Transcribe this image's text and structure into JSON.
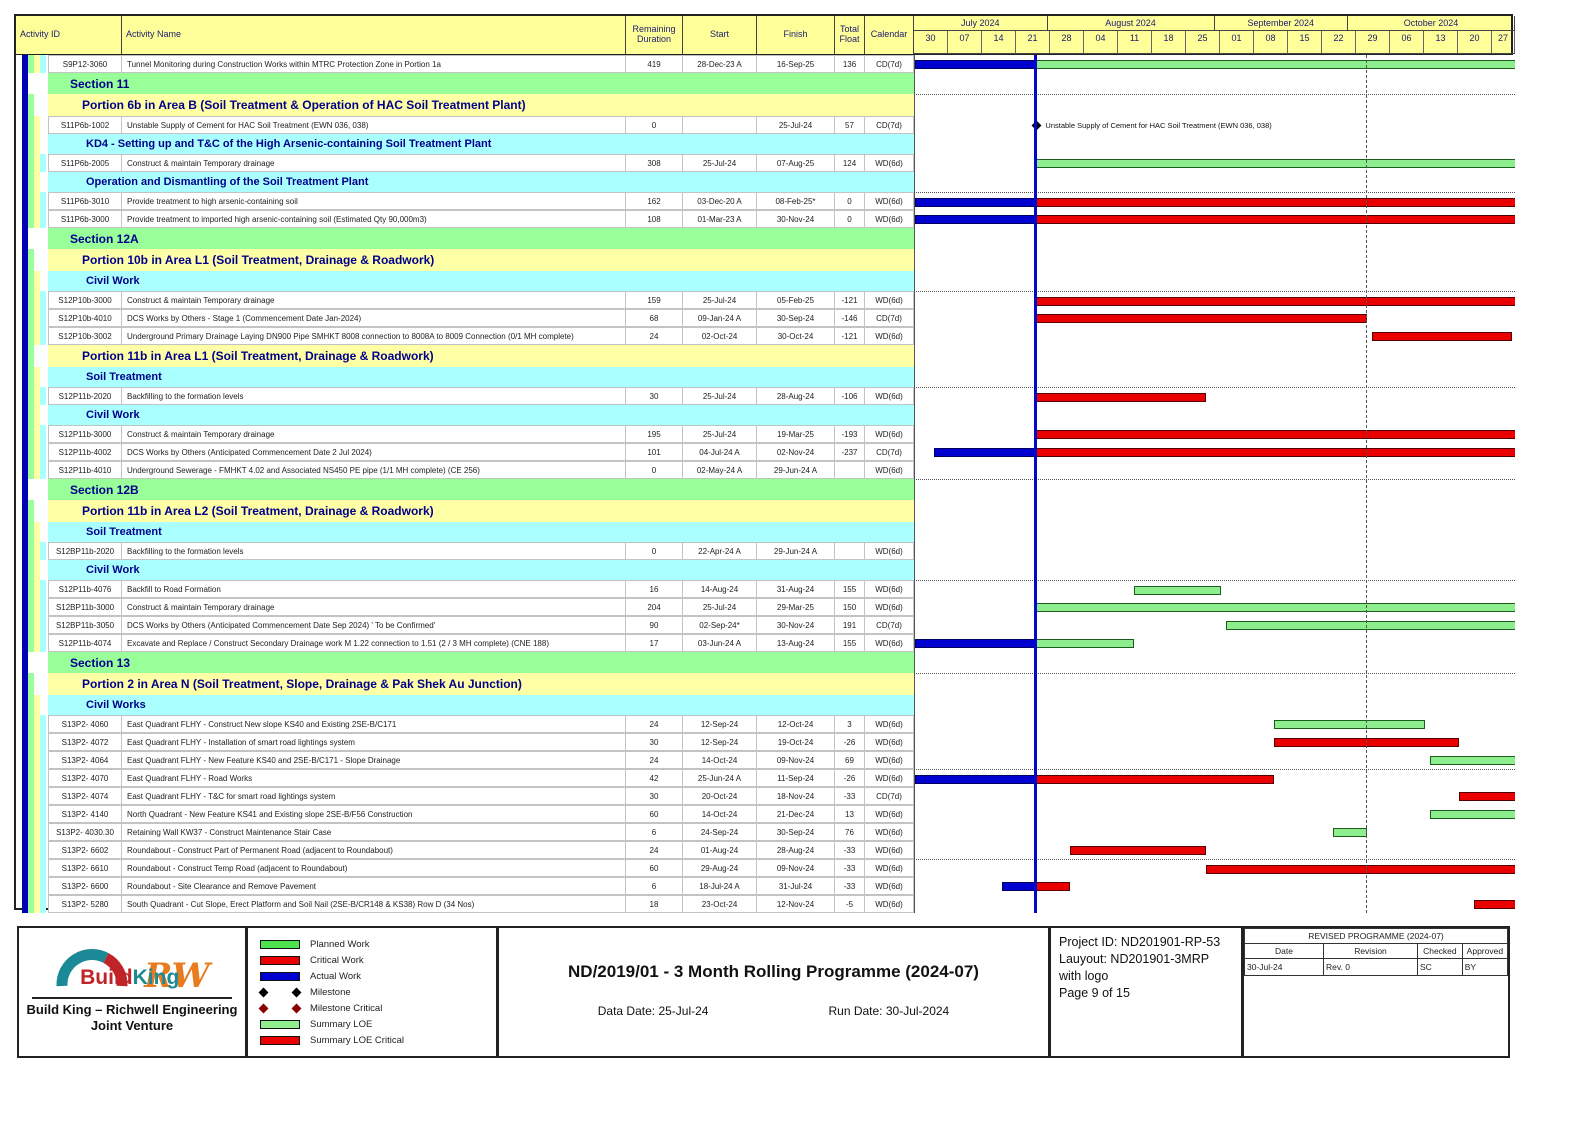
{
  "header_columns": {
    "activity_id": "Activity ID",
    "activity_name": "Activity Name",
    "remaining_duration": "Remaining Duration",
    "start": "Start",
    "finish": "Finish",
    "total_float": "Total Float",
    "calendar": "Calendar"
  },
  "chart_data": {
    "type": "table",
    "title": "ND/2019/01 - 3 Month Rolling Programme (2024-07)",
    "timeline": {
      "origin_date": "2024-06-30",
      "data_date": "25-Jul-24",
      "data_date_day": 25,
      "period_end_day": 93,
      "months": [
        {
          "label": "July 2024",
          "weeks": [
            "30",
            "07",
            "14",
            "21"
          ]
        },
        {
          "label": "August 2024",
          "weeks": [
            "28",
            "04",
            "11",
            "18",
            "25"
          ]
        },
        {
          "label": "September 2024",
          "weeks": [
            "01",
            "08",
            "15",
            "22"
          ]
        },
        {
          "label": "October 2024",
          "weeks": [
            "29",
            "06",
            "13",
            "20",
            "27"
          ]
        }
      ]
    },
    "bar_types": {
      "a": "Actual Work (blue)",
      "c": "Critical Work (red)",
      "p": "Planned Work (green)"
    },
    "rows": [
      {
        "t": "activity",
        "d": 4,
        "id": "S9P12-3060",
        "nm": "Tunnel Monitoring during Construction Works within MTRC Protection Zone in Portion 1a",
        "rd": "419",
        "st": "28-Dec-23 A",
        "fn": "16-Sep-25",
        "fl": "136",
        "cal": "CD(7d)",
        "bars": [
          {
            "c": "a",
            "s": 0,
            "e": 25
          },
          {
            "c": "p",
            "s": 25,
            "e": 999
          }
        ]
      },
      {
        "t": "section",
        "label": "Section 11"
      },
      {
        "t": "portion",
        "label": "Portion 6b in Area B   (Soil Treatment & Operation of HAC Soil Treatment Plant)",
        "sight": true
      },
      {
        "t": "activity",
        "d": 3,
        "id": "S11P6b-1002",
        "nm": "Unstable Supply of Cement for HAC Soil Treatment (EWN 036, 038)",
        "rd": "0",
        "st": "",
        "fn": "25-Jul-24",
        "fl": "57",
        "cal": "CD(7d)",
        "bars": [],
        "ms": {
          "day": 25,
          "label": "Unstable Supply of Cement for HAC Soil Treatment (EWN 036, 038)"
        }
      },
      {
        "t": "group",
        "label": "KD4 - Setting up and T&C of the High Arsenic-containing Soil Treatment Plant"
      },
      {
        "t": "activity",
        "d": 4,
        "id": "S11P6b-2005",
        "nm": "Construct & maintain Temporary drainage",
        "rd": "308",
        "st": "25-Jul-24",
        "fn": "07-Aug-25",
        "fl": "124",
        "cal": "WD(6d)",
        "bars": [
          {
            "c": "p",
            "s": 25,
            "e": 999
          }
        ]
      },
      {
        "t": "group",
        "label": "Operation and Dismantling of the Soil Treatment Plant"
      },
      {
        "t": "activity",
        "d": 4,
        "id": "S11P6b-3010",
        "nm": "Provide treatment to high arsenic-containing soil",
        "rd": "162",
        "st": "03-Dec-20 A",
        "fn": "08-Feb-25*",
        "fl": "0",
        "cal": "WD(6d)",
        "bars": [
          {
            "c": "a",
            "s": 0,
            "e": 25
          },
          {
            "c": "c",
            "s": 25,
            "e": 999
          }
        ],
        "sight": true
      },
      {
        "t": "activity",
        "d": 4,
        "id": "S11P6b-3000",
        "nm": "Provide treatment to imported high arsenic-containing soil (Estimated Qty 90,000m3)",
        "rd": "108",
        "st": "01-Mar-23 A",
        "fn": "30-Nov-24",
        "fl": "0",
        "cal": "WD(6d)",
        "bars": [
          {
            "c": "a",
            "s": 0,
            "e": 25
          },
          {
            "c": "c",
            "s": 25,
            "e": 999
          }
        ]
      },
      {
        "t": "section",
        "label": "Section 12A"
      },
      {
        "t": "portion",
        "label": "Portion 10b in Area L1   (Soil Treatment, Drainage & Roadwork)"
      },
      {
        "t": "group",
        "label": "Civil Work"
      },
      {
        "t": "activity",
        "d": 4,
        "id": "S12P10b-3000",
        "nm": "Construct & maintain Temporary drainage",
        "rd": "159",
        "st": "25-Jul-24",
        "fn": "05-Feb-25",
        "fl": "-121",
        "cal": "WD(6d)",
        "bars": [
          {
            "c": "c",
            "s": 25,
            "e": 999
          }
        ],
        "sight": true
      },
      {
        "t": "activity",
        "d": 4,
        "id": "S12P10b-4010",
        "nm": "DCS Works by Others - Stage 1 (Commencement Date Jan-2024)",
        "rd": "68",
        "st": "09-Jan-24 A",
        "fn": "30-Sep-24",
        "fl": "-146",
        "cal": "CD(7d)",
        "bars": [
          {
            "c": "c",
            "s": 25,
            "e": 93
          }
        ]
      },
      {
        "t": "activity",
        "d": 4,
        "id": "S12P10b-3002",
        "nm": "Underground Primary Drainage Laying DN900 Pipe SMHKT 8008 connection to 8008A to 8009 Connection (0/1 MH complete)",
        "rd": "24",
        "st": "02-Oct-24",
        "fn": "30-Oct-24",
        "fl": "-121",
        "cal": "WD(6d)",
        "bars": [
          {
            "c": "c",
            "s": 94,
            "e": 123
          }
        ]
      },
      {
        "t": "portion",
        "label": "Portion 11b in Area L1   (Soil Treatment, Drainage & Roadwork)"
      },
      {
        "t": "group",
        "label": "Soil Treatment"
      },
      {
        "t": "activity",
        "d": 4,
        "id": "S12P11b-2020",
        "nm": "Backfilling to the formation levels",
        "rd": "30",
        "st": "25-Jul-24",
        "fn": "28-Aug-24",
        "fl": "-106",
        "cal": "WD(6d)",
        "bars": [
          {
            "c": "c",
            "s": 25,
            "e": 60
          }
        ],
        "sight": true
      },
      {
        "t": "group",
        "label": "Civil Work"
      },
      {
        "t": "activity",
        "d": 4,
        "id": "S12P11b-3000",
        "nm": "Construct & maintain Temporary drainage",
        "rd": "195",
        "st": "25-Jul-24",
        "fn": "19-Mar-25",
        "fl": "-193",
        "cal": "WD(6d)",
        "bars": [
          {
            "c": "c",
            "s": 25,
            "e": 999
          }
        ]
      },
      {
        "t": "activity",
        "d": 4,
        "id": "S12P11b-4002",
        "nm": "DCS Works by Others (Anticipated Commencement Date 2 Jul 2024)",
        "rd": "101",
        "st": "04-Jul-24 A",
        "fn": "02-Nov-24",
        "fl": "-237",
        "cal": "CD(7d)",
        "bars": [
          {
            "c": "a",
            "s": 4,
            "e": 25
          },
          {
            "c": "c",
            "s": 25,
            "e": 999
          }
        ]
      },
      {
        "t": "activity",
        "d": 4,
        "id": "S12P11b-4010",
        "nm": "Underground Sewerage - FMHKT 4.02 and Associated NS450 PE pipe (1/1 MH complete) (CE 256)",
        "rd": "0",
        "st": "02-May-24 A",
        "fn": "29-Jun-24 A",
        "fl": "",
        "cal": "WD(6d)",
        "bars": []
      },
      {
        "t": "section",
        "label": "Section 12B",
        "sight": true
      },
      {
        "t": "portion",
        "label": "Portion 11b in Area L2   (Soil Treatment, Drainage & Roadwork)"
      },
      {
        "t": "group",
        "label": "Soil Treatment"
      },
      {
        "t": "activity",
        "d": 4,
        "id": "S12BP11b-2020",
        "nm": "Backfilling to the formation levels",
        "rd": "0",
        "st": "22-Apr-24 A",
        "fn": "29-Jun-24 A",
        "fl": "",
        "cal": "WD(6d)",
        "bars": []
      },
      {
        "t": "group",
        "label": "Civil Work"
      },
      {
        "t": "activity",
        "d": 4,
        "id": "S12P11b-4076",
        "nm": "Backfill to Road Formation",
        "rd": "16",
        "st": "14-Aug-24",
        "fn": "31-Aug-24",
        "fl": "155",
        "cal": "WD(6d)",
        "bars": [
          {
            "c": "p",
            "s": 45,
            "e": 63
          }
        ],
        "sight": true
      },
      {
        "t": "activity",
        "d": 4,
        "id": "S12BP11b-3000",
        "nm": "Construct & maintain Temporary drainage",
        "rd": "204",
        "st": "25-Jul-24",
        "fn": "29-Mar-25",
        "fl": "150",
        "cal": "WD(6d)",
        "bars": [
          {
            "c": "p",
            "s": 25,
            "e": 999
          }
        ]
      },
      {
        "t": "activity",
        "d": 4,
        "id": "S12BP11b-3050",
        "nm": "DCS Works by Others (Anticipated Commencement Date Sep 2024) ' To be Confirmed'",
        "rd": "90",
        "st": "02-Sep-24*",
        "fn": "30-Nov-24",
        "fl": "191",
        "cal": "CD(7d)",
        "bars": [
          {
            "c": "p",
            "s": 64,
            "e": 999
          }
        ]
      },
      {
        "t": "activity",
        "d": 4,
        "id": "S12P11b-4074",
        "nm": "Excavate and Replace / Construct Secondary Drainage work M 1.22 connection to 1.51 (2 / 3 MH complete) (CNE 188)",
        "rd": "17",
        "st": "03-Jun-24 A",
        "fn": "13-Aug-24",
        "fl": "155",
        "cal": "WD(6d)",
        "bars": [
          {
            "c": "a",
            "s": 0,
            "e": 25
          },
          {
            "c": "p",
            "s": 25,
            "e": 45
          }
        ]
      },
      {
        "t": "section",
        "label": "Section 13"
      },
      {
        "t": "portion",
        "label": "Portion 2 in Area N   (Soil Treatment, Slope, Drainage & Pak Shek Au Junction)",
        "sight": true
      },
      {
        "t": "group",
        "label": "Civil Works"
      },
      {
        "t": "activity",
        "d": 4,
        "id": "S13P2- 4060",
        "nm": "East Quadrant FLHY - Construct New slope KS40 and Existing 2SE-B/C171",
        "rd": "24",
        "st": "12-Sep-24",
        "fn": "12-Oct-24",
        "fl": "3",
        "cal": "WD(6d)",
        "bars": [
          {
            "c": "p",
            "s": 74,
            "e": 105
          }
        ]
      },
      {
        "t": "activity",
        "d": 4,
        "id": "S13P2- 4072",
        "nm": "East Quadrant FLHY - Installation of smart road lightings system",
        "rd": "30",
        "st": "12-Sep-24",
        "fn": "19-Oct-24",
        "fl": "-26",
        "cal": "WD(6d)",
        "bars": [
          {
            "c": "c",
            "s": 74,
            "e": 112
          }
        ]
      },
      {
        "t": "activity",
        "d": 4,
        "id": "S13P2- 4064",
        "nm": "East Quadrant FLHY - New Feature KS40 and 2SE-B/C171 - Slope Drainage",
        "rd": "24",
        "st": "14-Oct-24",
        "fn": "09-Nov-24",
        "fl": "69",
        "cal": "WD(6d)",
        "bars": [
          {
            "c": "p",
            "s": 106,
            "e": 999
          }
        ]
      },
      {
        "t": "activity",
        "d": 4,
        "id": "S13P2- 4070",
        "nm": "East Quadrant FLHY - Road Works",
        "rd": "42",
        "st": "25-Jun-24 A",
        "fn": "11-Sep-24",
        "fl": "-26",
        "cal": "WD(6d)",
        "bars": [
          {
            "c": "a",
            "s": 0,
            "e": 25
          },
          {
            "c": "c",
            "s": 25,
            "e": 74
          }
        ],
        "sight": true
      },
      {
        "t": "activity",
        "d": 4,
        "id": "S13P2- 4074",
        "nm": "East Quadrant FLHY - T&C for smart road lightings system",
        "rd": "30",
        "st": "20-Oct-24",
        "fn": "18-Nov-24",
        "fl": "-33",
        "cal": "CD(7d)",
        "bars": [
          {
            "c": "c",
            "s": 112,
            "e": 999
          }
        ]
      },
      {
        "t": "activity",
        "d": 4,
        "id": "S13P2- 4140",
        "nm": "North Quadrant - New Feature KS41 and Existing slope 2SE-B/F56 Construction",
        "rd": "60",
        "st": "14-Oct-24",
        "fn": "21-Dec-24",
        "fl": "13",
        "cal": "WD(6d)",
        "bars": [
          {
            "c": "p",
            "s": 106,
            "e": 999
          }
        ]
      },
      {
        "t": "activity",
        "d": 4,
        "id": "S13P2- 4030.30",
        "nm": "Retaining Wall KW37 - Construct Maintenance Stair Case",
        "rd": "6",
        "st": "24-Sep-24",
        "fn": "30-Sep-24",
        "fl": "76",
        "cal": "WD(6d)",
        "bars": [
          {
            "c": "p",
            "s": 86,
            "e": 93
          }
        ]
      },
      {
        "t": "activity",
        "d": 4,
        "id": "S13P2- 6602",
        "nm": "Roundabout - Construct Part of Permanent Road (adjacent to Roundabout)",
        "rd": "24",
        "st": "01-Aug-24",
        "fn": "28-Aug-24",
        "fl": "-33",
        "cal": "WD(6d)",
        "bars": [
          {
            "c": "c",
            "s": 32,
            "e": 60
          }
        ]
      },
      {
        "t": "activity",
        "d": 4,
        "id": "S13P2- 6610",
        "nm": "Roundabout - Construct Temp Road (adjacent to Roundabout)",
        "rd": "60",
        "st": "29-Aug-24",
        "fn": "09-Nov-24",
        "fl": "-33",
        "cal": "WD(6d)",
        "bars": [
          {
            "c": "c",
            "s": 60,
            "e": 999
          }
        ],
        "sight": true
      },
      {
        "t": "activity",
        "d": 4,
        "id": "S13P2- 6600",
        "nm": "Roundabout - Site Clearance and Remove Pavement",
        "rd": "6",
        "st": "18-Jul-24 A",
        "fn": "31-Jul-24",
        "fl": "-33",
        "cal": "WD(6d)",
        "bars": [
          {
            "c": "a",
            "s": 18,
            "e": 25
          },
          {
            "c": "c",
            "s": 25,
            "e": 32
          }
        ]
      },
      {
        "t": "activity",
        "d": 4,
        "id": "S13P2- 5280",
        "nm": "South Quadrant - Cut Slope, Erect Platform and Soil Nail (2SE-B/CR148 & KS38) Row D (34 Nos)",
        "rd": "18",
        "st": "23-Oct-24",
        "fn": "12-Nov-24",
        "fl": "-5",
        "cal": "WD(6d)",
        "bars": [
          {
            "c": "c",
            "s": 115,
            "e": 999
          }
        ]
      }
    ]
  },
  "legend": {
    "items": [
      {
        "label": "Planned Work",
        "swatch": "bar",
        "color": "#4ee24e"
      },
      {
        "label": "Critical Work",
        "swatch": "bar",
        "color": "#ea0000"
      },
      {
        "label": "Actual Work",
        "swatch": "bar",
        "color": "#0000cf"
      },
      {
        "label": "Milestone",
        "swatch": "diamond",
        "color": "#000000"
      },
      {
        "label": "Milestone Critical",
        "swatch": "diamond",
        "color": "#8b0000"
      },
      {
        "label": "Summary LOE",
        "swatch": "bar",
        "color": "#90ee90"
      },
      {
        "label": "Summary LOE Critical",
        "swatch": "bar",
        "color": "#ea0000"
      }
    ]
  },
  "footer": {
    "title": "ND/2019/01 - 3 Month Rolling Programme (2024-07)",
    "data_date_label": "Data Date: 25-Jul-24",
    "run_date_label": "Run Date: 30-Jul-2024",
    "logo": {
      "build": "Build",
      "king": "King",
      "rw": "RW"
    },
    "company_line1": "Build King – Richwell Engineering",
    "company_line2": "Joint Venture",
    "project": {
      "line1": "Project ID: ND201901-RP-53",
      "line2": "Lauyout: ND201901-3MRP with logo",
      "line3": "Page 9 of 15"
    },
    "revision": {
      "title": "REVISED PROGRAMME (2024-07)",
      "headers": [
        "Date",
        "Revision",
        "Checked",
        "Approved"
      ],
      "row": [
        "30-Jul-24",
        "Rev. 0",
        "SC",
        "BY"
      ]
    }
  }
}
